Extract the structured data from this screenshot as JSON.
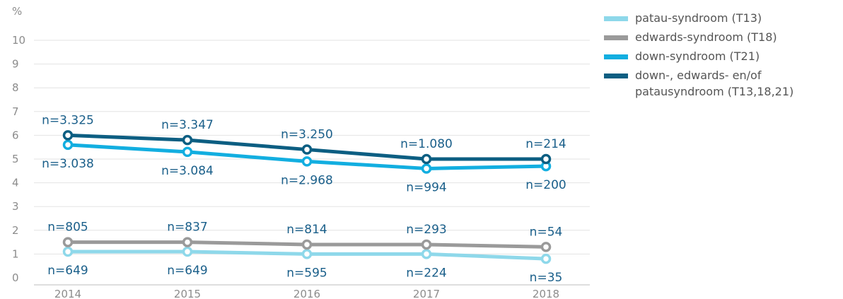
{
  "chart_data": {
    "type": "line",
    "y_unit": "%",
    "categories": [
      "2014",
      "2015",
      "2016",
      "2017",
      "2018"
    ],
    "yticks": [
      "0",
      "1",
      "2",
      "3",
      "4",
      "5",
      "6",
      "7",
      "8",
      "9",
      "10"
    ],
    "ylim": [
      0,
      11
    ],
    "grid": true,
    "legend_position": "top-right",
    "series": [
      {
        "name": "patau-syndroom (T13)",
        "color": "#8ed8ea",
        "values": [
          1.1,
          1.1,
          1.0,
          1.0,
          0.8
        ],
        "labels": [
          "n=649",
          "n=649",
          "n=595",
          "n=224",
          "n=35"
        ],
        "label_side": "below"
      },
      {
        "name": "edwards-syndroom (T18)",
        "color": "#9a9a9a",
        "values": [
          1.5,
          1.5,
          1.4,
          1.4,
          1.3
        ],
        "labels": [
          "n=805",
          "n=837",
          "n=814",
          "n=293",
          "n=54"
        ],
        "label_side": "above"
      },
      {
        "name": "down-syndroom (T21)",
        "color": "#12aee0",
        "values": [
          5.6,
          5.3,
          4.9,
          4.6,
          4.7
        ],
        "labels": [
          "n=3.038",
          "n=3.084",
          "n=2.968",
          "n=994",
          "n=200"
        ],
        "label_side": "below"
      },
      {
        "name": "down-, edwards- en/of patausyndroom (T13,18,21)",
        "color": "#0c5e82",
        "values": [
          6.0,
          5.8,
          5.4,
          5.0,
          5.0
        ],
        "labels": [
          "n=3.325",
          "n=3.347",
          "n=3.250",
          "n=1.080",
          "n=214"
        ],
        "label_side": "above"
      }
    ]
  }
}
